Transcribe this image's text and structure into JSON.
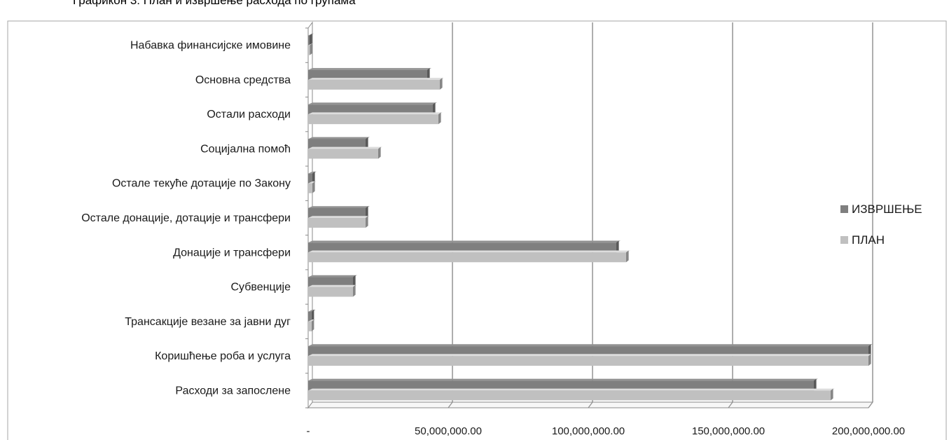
{
  "title": "Графикон 3: План и извршење расхода по групама",
  "chart_data": {
    "type": "bar",
    "orientation": "horizontal",
    "three_d": true,
    "categories": [
      "Набавка финансијске имовине",
      "Основна средства",
      "Остали расходи",
      "Социјална помоћ",
      "Остале текуће дотације по Закону",
      "Остале донације, дотације и трансфери",
      "Донације и трансфери",
      "Субвенције",
      "Трансакције везане за јавни дуг",
      "Коришћење роба и услуга",
      "Расходи за запослене"
    ],
    "series": [
      {
        "name": "ИЗВРШЕЊЕ",
        "color": "#7f7f7f",
        "values": [
          500000,
          42500000,
          44500000,
          20500000,
          1500000,
          20500000,
          110000000,
          16000000,
          1200000,
          200000000,
          180500000
        ]
      },
      {
        "name": "ПЛАН",
        "color": "#c0c0c0",
        "values": [
          600000,
          47000000,
          46500000,
          25000000,
          1500000,
          20500000,
          113500000,
          16000000,
          1200000,
          200000000,
          186500000
        ]
      }
    ],
    "xlim": [
      0,
      200000000
    ],
    "x_ticks": [
      0,
      50000000,
      100000000,
      150000000,
      200000000
    ],
    "x_tick_labels": [
      "-",
      "50,000,000.00",
      "100,000,000.00",
      "150,000,000.00",
      "200,000,000.00"
    ],
    "grid": true,
    "legend_position": "right"
  }
}
